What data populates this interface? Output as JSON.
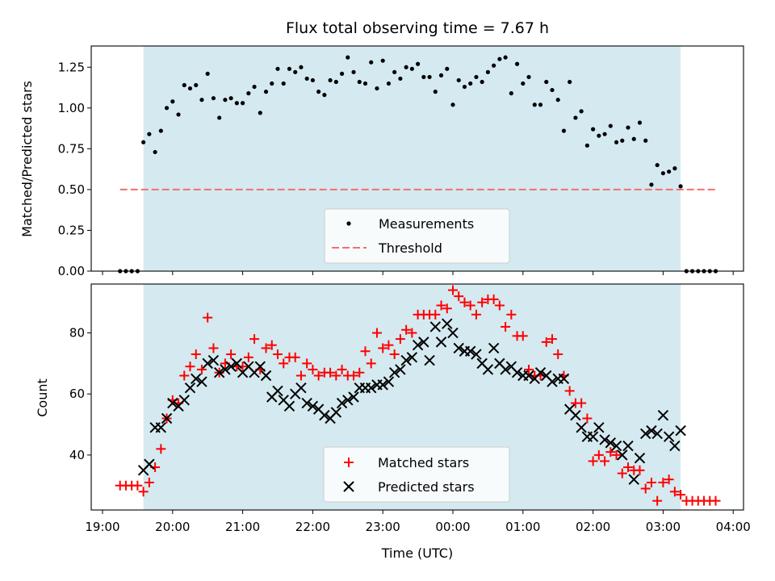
{
  "chart_data": [
    {
      "type": "scatter",
      "title": "Flux total observing time = 7.67 h",
      "ylabel": "Matched/Predicted stars",
      "xlabel": "",
      "ylim": [
        0,
        1.38
      ],
      "yticks": [
        "0.00",
        "0.25",
        "0.50",
        "0.75",
        "1.00",
        "1.25"
      ],
      "ytick_values": [
        0,
        0.25,
        0.5,
        0.75,
        1.0,
        1.25
      ],
      "observing_window": [
        "19:35",
        "03:15"
      ],
      "colors": {
        "shade": "#d4eaf0",
        "measurements": "#000000",
        "threshold": "#f07070"
      },
      "series": [
        {
          "name": "Measurements",
          "x": [
            "19:15",
            "19:20",
            "19:25",
            "19:30",
            "19:35",
            "19:40",
            "19:45",
            "19:50",
            "19:55",
            "20:00",
            "20:05",
            "20:10",
            "20:15",
            "20:20",
            "20:25",
            "20:30",
            "20:35",
            "20:40",
            "20:45",
            "20:50",
            "20:55",
            "21:00",
            "21:05",
            "21:10",
            "21:15",
            "21:20",
            "21:25",
            "21:30",
            "21:35",
            "21:40",
            "21:45",
            "21:50",
            "21:55",
            "22:00",
            "22:05",
            "22:10",
            "22:15",
            "22:20",
            "22:25",
            "22:30",
            "22:35",
            "22:40",
            "22:45",
            "22:50",
            "22:55",
            "23:00",
            "23:05",
            "23:10",
            "23:15",
            "23:20",
            "23:25",
            "23:30",
            "23:35",
            "23:40",
            "23:45",
            "23:50",
            "23:55",
            "00:00",
            "00:05",
            "00:10",
            "00:15",
            "00:20",
            "00:25",
            "00:30",
            "00:35",
            "00:40",
            "00:45",
            "00:50",
            "00:55",
            "01:00",
            "01:05",
            "01:10",
            "01:15",
            "01:20",
            "01:25",
            "01:30",
            "01:35",
            "01:40",
            "01:45",
            "01:50",
            "01:55",
            "02:00",
            "02:05",
            "02:10",
            "02:15",
            "02:20",
            "02:25",
            "02:30",
            "02:35",
            "02:40",
            "02:45",
            "02:50",
            "02:55",
            "03:00",
            "03:05",
            "03:10",
            "03:15",
            "03:20",
            "03:25",
            "03:30",
            "03:35",
            "03:40",
            "03:45"
          ],
          "y": [
            0.0,
            0.0,
            0.0,
            0.0,
            0.79,
            0.84,
            0.73,
            0.86,
            1.0,
            1.04,
            0.96,
            1.14,
            1.12,
            1.14,
            1.05,
            1.21,
            1.06,
            0.94,
            1.05,
            1.06,
            1.03,
            1.03,
            1.09,
            1.13,
            0.97,
            1.1,
            1.15,
            1.24,
            1.15,
            1.24,
            1.22,
            1.25,
            1.18,
            1.17,
            1.1,
            1.08,
            1.17,
            1.16,
            1.21,
            1.31,
            1.22,
            1.16,
            1.15,
            1.28,
            1.12,
            1.29,
            1.15,
            1.22,
            1.18,
            1.25,
            1.24,
            1.27,
            1.19,
            1.19,
            1.1,
            1.2,
            1.24,
            1.02,
            1.17,
            1.13,
            1.15,
            1.19,
            1.16,
            1.22,
            1.26,
            1.3,
            1.31,
            1.09,
            1.27,
            1.15,
            1.19,
            1.02,
            1.02,
            1.16,
            1.11,
            1.05,
            0.86,
            1.16,
            0.94,
            0.98,
            0.77,
            0.87,
            0.83,
            0.84,
            0.89,
            0.79,
            0.8,
            0.88,
            0.81,
            0.91,
            0.8,
            0.53,
            0.65,
            0.6,
            0.61,
            0.63,
            0.52,
            0.0,
            0.0,
            0.0,
            0.0,
            0.0,
            0.0
          ]
        },
        {
          "name": "Threshold",
          "x": [
            "19:15",
            "03:45"
          ],
          "y": [
            0.5,
            0.5
          ]
        }
      ],
      "legend": {
        "position": "lower center",
        "entries": [
          "Measurements",
          "Threshold"
        ]
      }
    },
    {
      "type": "scatter",
      "title": "",
      "xlabel": "Time (UTC)",
      "ylabel": "Count",
      "ylim": [
        22,
        96
      ],
      "yticks": [
        "40",
        "60",
        "80"
      ],
      "ytick_values": [
        40,
        60,
        80
      ],
      "xticks": [
        "19:00",
        "20:00",
        "21:00",
        "22:00",
        "23:00",
        "00:00",
        "01:00",
        "02:00",
        "03:00",
        "04:00"
      ],
      "observing_window": [
        "19:35",
        "03:15"
      ],
      "colors": {
        "shade": "#d4eaf0",
        "matched": "#ff0000",
        "predicted": "#000000"
      },
      "series": [
        {
          "name": "Matched stars",
          "x": [
            "19:15",
            "19:20",
            "19:25",
            "19:30",
            "19:35",
            "19:40",
            "19:45",
            "19:50",
            "19:55",
            "20:00",
            "20:05",
            "20:10",
            "20:15",
            "20:20",
            "20:25",
            "20:30",
            "20:35",
            "20:40",
            "20:45",
            "20:50",
            "20:55",
            "21:00",
            "21:05",
            "21:10",
            "21:15",
            "21:20",
            "21:25",
            "21:30",
            "21:35",
            "21:40",
            "21:45",
            "21:50",
            "21:55",
            "22:00",
            "22:05",
            "22:10",
            "22:15",
            "22:20",
            "22:25",
            "22:30",
            "22:35",
            "22:40",
            "22:45",
            "22:50",
            "22:55",
            "23:00",
            "23:05",
            "23:10",
            "23:15",
            "23:20",
            "23:25",
            "23:30",
            "23:35",
            "23:40",
            "23:45",
            "23:50",
            "23:55",
            "00:00",
            "00:05",
            "00:10",
            "00:15",
            "00:20",
            "00:25",
            "00:30",
            "00:35",
            "00:40",
            "00:45",
            "00:50",
            "00:55",
            "01:00",
            "01:05",
            "01:10",
            "01:15",
            "01:20",
            "01:25",
            "01:30",
            "01:35",
            "01:40",
            "01:45",
            "01:50",
            "01:55",
            "02:00",
            "02:05",
            "02:10",
            "02:15",
            "02:20",
            "02:25",
            "02:30",
            "02:35",
            "02:40",
            "02:45",
            "02:50",
            "02:55",
            "03:00",
            "03:05",
            "03:10",
            "03:15",
            "03:20",
            "03:25",
            "03:30",
            "03:35",
            "03:40",
            "03:45"
          ],
          "y": [
            30,
            30,
            30,
            30,
            28,
            31,
            36,
            42,
            52,
            58,
            57,
            66,
            69,
            73,
            68,
            85,
            75,
            67,
            70,
            73,
            69,
            69,
            72,
            78,
            68,
            75,
            76,
            73,
            70,
            72,
            72,
            66,
            70,
            68,
            66,
            67,
            67,
            66,
            68,
            66,
            66,
            67,
            74,
            70,
            80,
            75,
            76,
            73,
            78,
            81,
            80,
            86,
            86,
            86,
            86,
            89,
            88,
            94,
            92,
            90,
            89,
            86,
            90,
            91,
            91,
            89,
            82,
            86,
            79,
            79,
            68,
            66,
            66,
            77,
            78,
            73,
            66,
            61,
            57,
            57,
            52,
            38,
            40,
            38,
            41,
            40,
            34,
            36,
            35,
            35,
            29,
            31,
            25,
            31,
            32,
            28,
            27,
            25,
            25,
            25,
            25,
            25,
            25
          ]
        },
        {
          "name": "Predicted stars",
          "x": [
            "19:35",
            "19:40",
            "19:45",
            "19:50",
            "19:55",
            "20:00",
            "20:05",
            "20:10",
            "20:15",
            "20:20",
            "20:25",
            "20:30",
            "20:35",
            "20:40",
            "20:45",
            "20:50",
            "20:55",
            "21:00",
            "21:05",
            "21:10",
            "21:15",
            "21:20",
            "21:25",
            "21:30",
            "21:35",
            "21:40",
            "21:45",
            "21:50",
            "21:55",
            "22:00",
            "22:05",
            "22:10",
            "22:15",
            "22:20",
            "22:25",
            "22:30",
            "22:35",
            "22:40",
            "22:45",
            "22:50",
            "22:55",
            "23:00",
            "23:05",
            "23:10",
            "23:15",
            "23:20",
            "23:25",
            "23:30",
            "23:35",
            "23:40",
            "23:45",
            "23:50",
            "23:55",
            "00:00",
            "00:05",
            "00:10",
            "00:15",
            "00:20",
            "00:25",
            "00:30",
            "00:35",
            "00:40",
            "00:45",
            "00:50",
            "00:55",
            "01:00",
            "01:05",
            "01:10",
            "01:15",
            "01:20",
            "01:25",
            "01:30",
            "01:35",
            "01:40",
            "01:45",
            "01:50",
            "01:55",
            "02:00",
            "02:05",
            "02:10",
            "02:15",
            "02:20",
            "02:25",
            "02:30",
            "02:35",
            "02:40",
            "02:45",
            "02:50",
            "02:55",
            "03:00",
            "03:05",
            "03:10",
            "03:15"
          ],
          "y": [
            35,
            37,
            49,
            49,
            52,
            57,
            56,
            58,
            62,
            65,
            64,
            70,
            71,
            67,
            68,
            69,
            70,
            67,
            69,
            67,
            69,
            66,
            59,
            61,
            58,
            56,
            60,
            62,
            57,
            56,
            55,
            53,
            52,
            54,
            57,
            58,
            59,
            62,
            62,
            62,
            63,
            63,
            64,
            67,
            68,
            71,
            72,
            76,
            77,
            71,
            82,
            77,
            83,
            80,
            75,
            74,
            74,
            73,
            70,
            68,
            75,
            70,
            68,
            69,
            67,
            66,
            66,
            65,
            67,
            66,
            64,
            65,
            65,
            55,
            53,
            49,
            46,
            46,
            49,
            45,
            44,
            43,
            40,
            43,
            32,
            39,
            47,
            48,
            47,
            53,
            46,
            43,
            48
          ]
        }
      ],
      "legend": {
        "position": "lower center",
        "entries": [
          "Matched stars",
          "Predicted stars"
        ]
      }
    }
  ]
}
